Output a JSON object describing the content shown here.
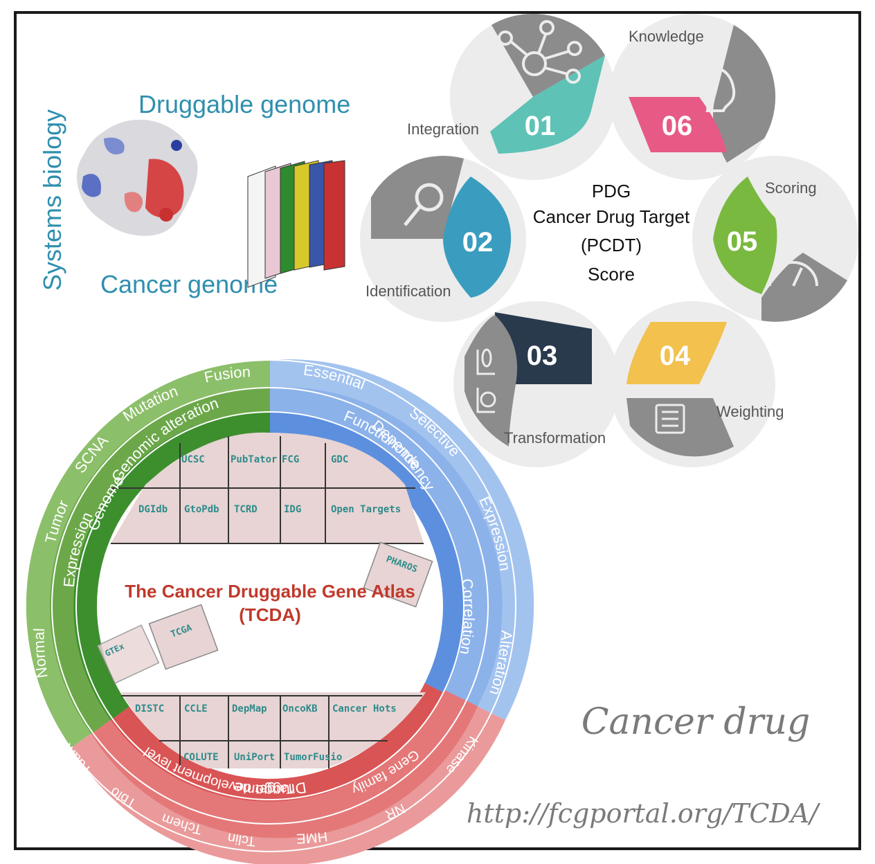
{
  "header": {
    "systems_biology": "Systems biology",
    "druggable_genome": "Druggable genome",
    "cancer_genome": "Cancer genome"
  },
  "pcdt": {
    "center_lines": [
      "PDG",
      "Cancer Drug Target",
      "(PCDT)",
      "Score"
    ],
    "steps": [
      {
        "num": "01",
        "label": "Integration",
        "color": "#5ec2b7",
        "icon": "network-icon"
      },
      {
        "num": "02",
        "label": "Identification",
        "color": "#3a9dbf",
        "icon": "magnifier-icon"
      },
      {
        "num": "03",
        "label": "Transformation",
        "color": "#2a3a4d",
        "icon": "flask-icon"
      },
      {
        "num": "04",
        "label": "Weighting",
        "color": "#f2c14e",
        "icon": "calendar-icon"
      },
      {
        "num": "05",
        "label": "Scoring",
        "color": "#79b93f",
        "icon": "gauge-icon"
      },
      {
        "num": "06",
        "label": "Knowledge",
        "color": "#e75a86",
        "icon": "head-icon"
      }
    ]
  },
  "atlas": {
    "title": "The Cancer Druggable Gene Atlas",
    "subtitle": "(TCDA)",
    "inner_ring": {
      "genome": "Genome",
      "functionome": "Functionome",
      "druggome": "Druggome"
    },
    "middle_ring": {
      "genomic_alteration": "Genomic alteration",
      "expression_left": "Expression",
      "dependency": "Dependency",
      "correlation": "Correlation",
      "target_development_level": "Target development level",
      "gene_family": "Gene family"
    },
    "outer_ring": {
      "fusion": "Fusion",
      "mutation": "Mutation",
      "scna": "SCNA",
      "tumor": "Tumor",
      "normal": "Normal",
      "essential": "Essential",
      "selective": "Selective",
      "expression_right": "Expression",
      "alteration": "Alteration",
      "kinase": "Kinase",
      "nr": "NR",
      "hme": "HME",
      "tclin": "Tclin",
      "tchem": "Tchem",
      "tbio": "Tbio",
      "tdark": "Tdark"
    },
    "puzzle_top": [
      "UCSC",
      "PubTator",
      "FCG",
      "GDC",
      "DGIdb",
      "GtoPdb",
      "TCRD",
      "IDG",
      "Open Targets"
    ],
    "puzzle_bottom": [
      "DISTC",
      "CCLE",
      "DepMap",
      "OncoKB",
      "Cancer Hots",
      "COLUTE",
      "UniPort",
      "TumorFusio"
    ],
    "floating": [
      "PHAROS",
      "TCGA",
      "GTEx"
    ]
  },
  "footer": {
    "cancer_drug": "Cancer drug",
    "url": "http://fcgportal.org/TCDA/"
  }
}
